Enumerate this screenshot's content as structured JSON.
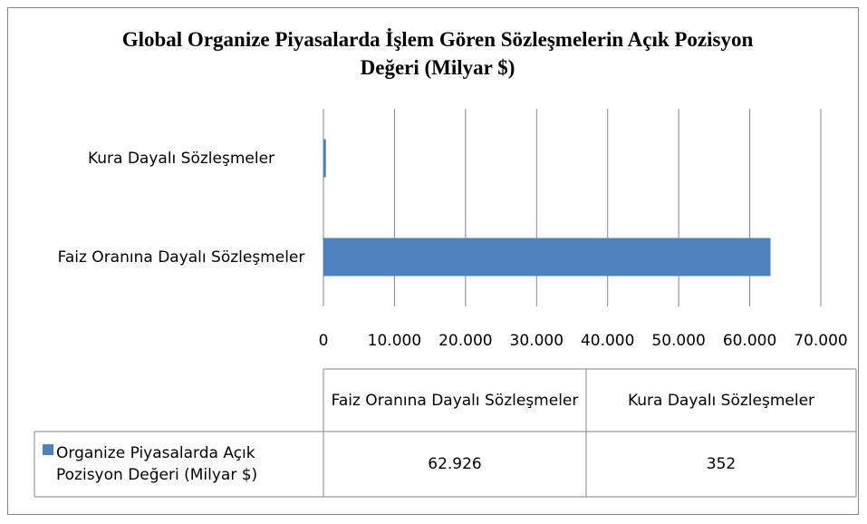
{
  "chart_data": {
    "type": "bar",
    "orientation": "horizontal",
    "title": "Global Organize Piyasalarda İşlem Gören Sözleşmelerin Açık Pozisyon Değeri (Milyar $)",
    "categories": [
      "Faiz Oranına Dayalı Sözleşmeler",
      "Kura Dayalı Sözleşmeler"
    ],
    "series": [
      {
        "name": "Organize Piyasalarda Açık Pozisyon Değeri (Milyar $)",
        "color": "#4f81bd",
        "values": [
          62926,
          352
        ],
        "value_labels": [
          "62.926",
          "352"
        ]
      }
    ],
    "xlim": [
      0,
      70000
    ],
    "xticks": [
      0,
      {
        "value": 10000,
        "label": "10.000"
      },
      {
        "value": 20000,
        "label": "20.000"
      },
      {
        "value": 30000,
        "label": "30.000"
      },
      {
        "value": 40000,
        "label": "40.000"
      },
      {
        "value": 50000,
        "label": "50.000"
      },
      {
        "value": 60000,
        "label": "60.000"
      },
      {
        "value": 70000,
        "label": "70.000"
      }
    ],
    "grid": true,
    "data_table": true
  }
}
